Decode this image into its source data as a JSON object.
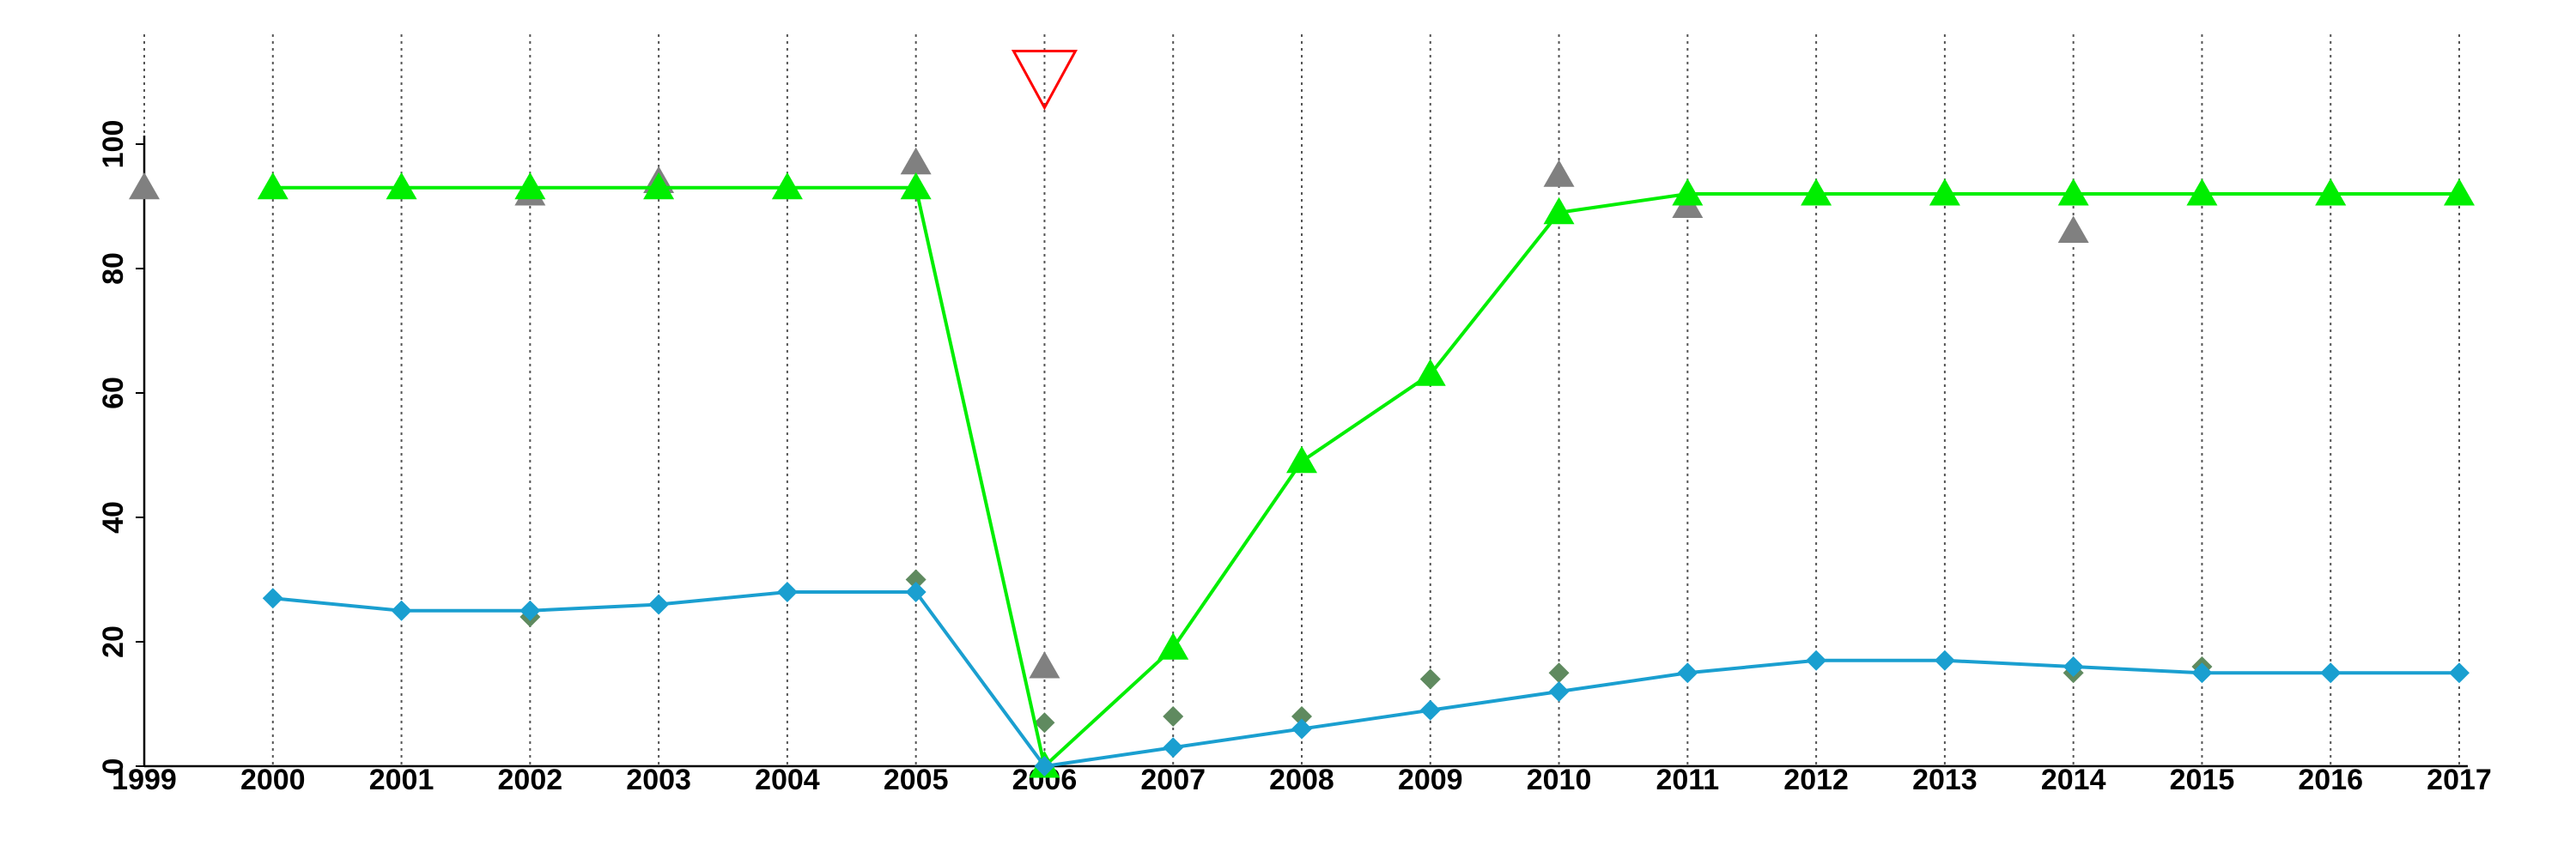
{
  "chart_data": {
    "type": "line",
    "xlim": [
      1999,
      2017
    ],
    "xticks": [
      1999,
      2000,
      2001,
      2002,
      2003,
      2004,
      2005,
      2006,
      2007,
      2008,
      2009,
      2010,
      2011,
      2012,
      2013,
      2014,
      2015,
      2016,
      2017
    ],
    "ylim": [
      0,
      100
    ],
    "yticks": [
      0,
      20,
      40,
      60,
      80,
      100
    ],
    "grid": "x",
    "series": [
      {
        "color": "#808080",
        "marker": "triangle",
        "line": false,
        "x": [
          1999,
          2002,
          2003,
          2005,
          2006,
          2010,
          2011,
          2014,
          2016
        ],
        "values": [
          93,
          92,
          94,
          97,
          16,
          95,
          90,
          86,
          92
        ]
      },
      {
        "color": "#5f8a5f",
        "marker": "diamond",
        "line": false,
        "x": [
          2002,
          2005,
          2006,
          2007,
          2008,
          2009,
          2010,
          2014,
          2015
        ],
        "values": [
          24,
          30,
          7,
          8,
          8,
          14,
          15,
          15,
          16
        ]
      },
      {
        "color": "#00ee00",
        "marker": "triangle",
        "line": true,
        "x": [
          2000,
          2001,
          2002,
          2003,
          2004,
          2005,
          2006,
          2007,
          2008,
          2009,
          2010,
          2011,
          2012,
          2013,
          2014,
          2015,
          2016,
          2017
        ],
        "values": [
          93,
          93,
          93,
          93,
          93,
          93,
          0,
          19,
          49,
          63,
          89,
          92,
          92,
          92,
          92,
          92,
          92,
          92
        ]
      },
      {
        "color": "#1a9fd0",
        "marker": "diamond",
        "line": true,
        "x": [
          2000,
          2001,
          2002,
          2003,
          2004,
          2005,
          2006,
          2007,
          2008,
          2009,
          2010,
          2011,
          2012,
          2013,
          2014,
          2015,
          2016,
          2017
        ],
        "values": [
          27,
          25,
          25,
          26,
          28,
          28,
          0,
          3,
          6,
          9,
          12,
          15,
          17,
          17,
          16,
          15,
          15,
          15
        ]
      },
      {
        "color": "#ff0000",
        "marker": "triangle-down-open",
        "line": false,
        "x": [
          2006
        ],
        "values": [
          110
        ]
      }
    ]
  }
}
